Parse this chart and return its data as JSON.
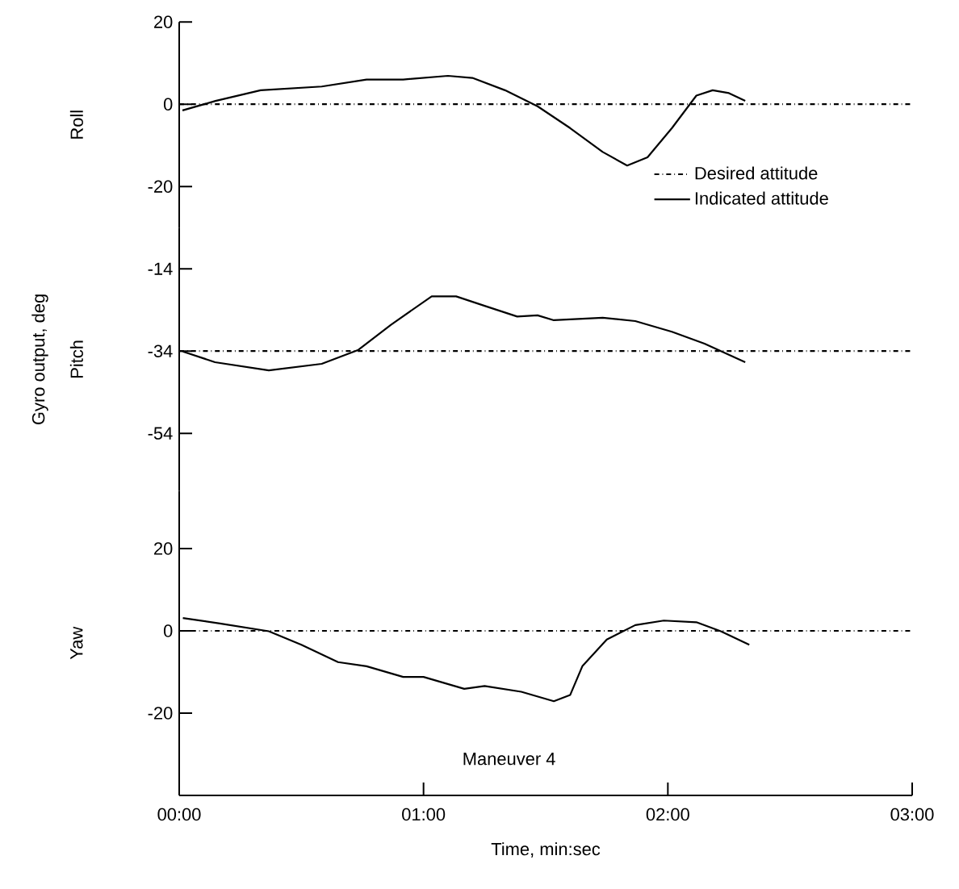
{
  "chart_data": [
    {
      "type": "line",
      "title": "Roll",
      "xlim": [
        0,
        180
      ],
      "ylim": [
        -30,
        20
      ],
      "yticks": [
        20,
        0,
        -20
      ],
      "tick_labels": "y",
      "legend": "bottom right",
      "marker": "none",
      "series": [
        {
          "name": "Desired attitude",
          "color": "#000000",
          "line_style": "dashdot",
          "x": [
            0,
            180
          ],
          "values": [
            0,
            0
          ]
        },
        {
          "name": "Indicated attitude",
          "color": "#000000",
          "line_style": "solid",
          "x": [
            0.8,
            8.9,
            20,
            35,
            46,
            55,
            66,
            72,
            80,
            88,
            96,
            104,
            110,
            115,
            121,
            127,
            131,
            135,
            139
          ],
          "values": [
            -1.5,
            0.8,
            3.4,
            4.3,
            6,
            6,
            6.9,
            6.4,
            3.4,
            -0.5,
            -5.8,
            -11.6,
            -14.9,
            -12.9,
            -5.8,
            2.1,
            3.4,
            2.7,
            0.8
          ]
        }
      ]
    },
    {
      "type": "line",
      "title": "Pitch",
      "ylabel": "Gyro output, deg",
      "xlim": [
        0,
        180
      ],
      "ylim": [
        -68,
        -4
      ],
      "yticks": [
        -14,
        -34,
        -54
      ],
      "tick_labels": "y",
      "marker": "none",
      "series": [
        {
          "color": "#000000",
          "line_style": "dashdot",
          "x": [
            0,
            180
          ],
          "values": [
            -34,
            -34
          ]
        },
        {
          "color": "#000000",
          "line_style": "solid",
          "x": [
            0.9,
            8.8,
            22,
            35,
            44,
            52,
            62,
            68,
            75,
            83,
            88,
            92,
            104,
            112,
            121,
            129,
            139
          ],
          "values": [
            -34.1,
            -36.7,
            -38.7,
            -37.1,
            -33.7,
            -27.6,
            -20.7,
            -20.7,
            -23,
            -25.6,
            -25.3,
            -26.5,
            -25.9,
            -26.7,
            -29.3,
            -32.2,
            -36.7
          ]
        }
      ]
    },
    {
      "type": "line",
      "title": "Yaw",
      "xlabel": "Time, min:sec",
      "annotations": [
        "Maneuver 4"
      ],
      "xlim": [
        0,
        180
      ],
      "xticks": [
        {
          "value": 0,
          "label": "00:00"
        },
        {
          "value": 60,
          "label": "01:00"
        },
        {
          "value": 120,
          "label": "02:00"
        },
        {
          "value": 180,
          "label": "03:00"
        }
      ],
      "ylim": [
        -40,
        34
      ],
      "yticks": [
        20,
        0,
        -20
      ],
      "marker": "none",
      "series": [
        {
          "color": "#000000",
          "line_style": "dashdot",
          "x": [
            0,
            180
          ],
          "values": [
            0,
            0
          ]
        },
        {
          "color": "#000000",
          "line_style": "solid",
          "x": [
            0.9,
            10,
            22,
            30,
            39,
            46,
            55,
            60,
            70,
            75,
            84,
            92,
            96,
            99,
            105,
            112,
            119,
            127,
            133,
            140
          ],
          "values": [
            3.1,
            1.8,
            -0.1,
            -3.4,
            -7.6,
            -8.6,
            -11.2,
            -11.2,
            -14.1,
            -13.4,
            -14.8,
            -17.1,
            -15.6,
            -8.6,
            -2.1,
            1.4,
            2.5,
            2.1,
            -0.1,
            -3.4
          ]
        }
      ]
    }
  ]
}
